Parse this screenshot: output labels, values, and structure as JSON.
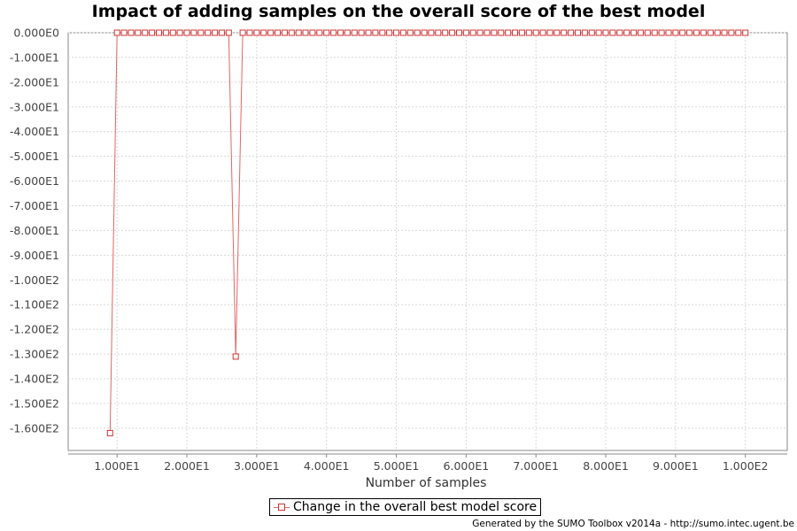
{
  "chart_data": {
    "type": "line",
    "title": "Impact of adding samples on the overall score of the best model",
    "xlabel": "Number of samples",
    "ylabel": "",
    "xlim": [
      3,
      106
    ],
    "ylim": [
      -169,
      0
    ],
    "x_ticks": [
      {
        "value": 10,
        "label": "1.000E1"
      },
      {
        "value": 20,
        "label": "2.000E1"
      },
      {
        "value": 30,
        "label": "3.000E1"
      },
      {
        "value": 40,
        "label": "4.000E1"
      },
      {
        "value": 50,
        "label": "5.000E1"
      },
      {
        "value": 60,
        "label": "6.000E1"
      },
      {
        "value": 70,
        "label": "7.000E1"
      },
      {
        "value": 80,
        "label": "8.000E1"
      },
      {
        "value": 90,
        "label": "9.000E1"
      },
      {
        "value": 100,
        "label": "1.000E2"
      }
    ],
    "y_ticks": [
      {
        "value": 0,
        "label": "0.000E0"
      },
      {
        "value": -10,
        "label": "-1.000E1"
      },
      {
        "value": -20,
        "label": "-2.000E1"
      },
      {
        "value": -30,
        "label": "-3.000E1"
      },
      {
        "value": -40,
        "label": "-4.000E1"
      },
      {
        "value": -50,
        "label": "-5.000E1"
      },
      {
        "value": -60,
        "label": "-6.000E1"
      },
      {
        "value": -70,
        "label": "-7.000E1"
      },
      {
        "value": -80,
        "label": "-8.000E1"
      },
      {
        "value": -90,
        "label": "-9.000E1"
      },
      {
        "value": -100,
        "label": "-1.000E2"
      },
      {
        "value": -110,
        "label": "-1.100E2"
      },
      {
        "value": -120,
        "label": "-1.200E2"
      },
      {
        "value": -130,
        "label": "-1.300E2"
      },
      {
        "value": -140,
        "label": "-1.400E2"
      },
      {
        "value": -150,
        "label": "-1.500E2"
      },
      {
        "value": -160,
        "label": "-1.600E2"
      }
    ],
    "grid": true,
    "legend_position": "bottom-center",
    "series": [
      {
        "name": "Change in the overall best model score",
        "color": "#e06666",
        "x": [
          9,
          10,
          11,
          12,
          13,
          14,
          15,
          16,
          17,
          18,
          19,
          20,
          21,
          22,
          23,
          24,
          25,
          26,
          27,
          28,
          29,
          30,
          31,
          32,
          33,
          34,
          35,
          36,
          37,
          38,
          39,
          40,
          41,
          42,
          43,
          44,
          45,
          46,
          47,
          48,
          49,
          50,
          51,
          52,
          53,
          54,
          55,
          56,
          57,
          58,
          59,
          60,
          61,
          62,
          63,
          64,
          65,
          66,
          67,
          68,
          69,
          70,
          71,
          72,
          73,
          74,
          75,
          76,
          77,
          78,
          79,
          80,
          81,
          82,
          83,
          84,
          85,
          86,
          87,
          88,
          89,
          90,
          91,
          92,
          93,
          94,
          95,
          96,
          97,
          98,
          99,
          100
        ],
        "y": [
          -162,
          0,
          0,
          0,
          0,
          0,
          0,
          0,
          0,
          0,
          0,
          0,
          0,
          0,
          0,
          0,
          0,
          0,
          -131,
          0,
          0,
          0,
          0,
          0,
          0,
          0,
          0,
          0,
          0,
          0,
          0,
          0,
          0,
          0,
          0,
          0,
          0,
          0,
          0,
          0,
          0,
          0,
          0,
          0,
          0,
          0,
          0,
          0,
          0,
          0,
          0,
          0,
          0,
          0,
          0,
          0,
          0,
          0,
          0,
          0,
          0,
          0,
          0,
          0,
          0,
          0,
          0,
          0,
          0,
          0,
          0,
          0,
          0,
          0,
          0,
          0,
          0,
          0,
          0,
          0,
          0,
          0,
          0,
          0,
          0,
          0,
          0,
          0,
          0,
          0,
          0,
          0
        ]
      }
    ]
  },
  "footer": "Generated by the SUMO Toolbox v2014a - http://sumo.intec.ugent.be"
}
